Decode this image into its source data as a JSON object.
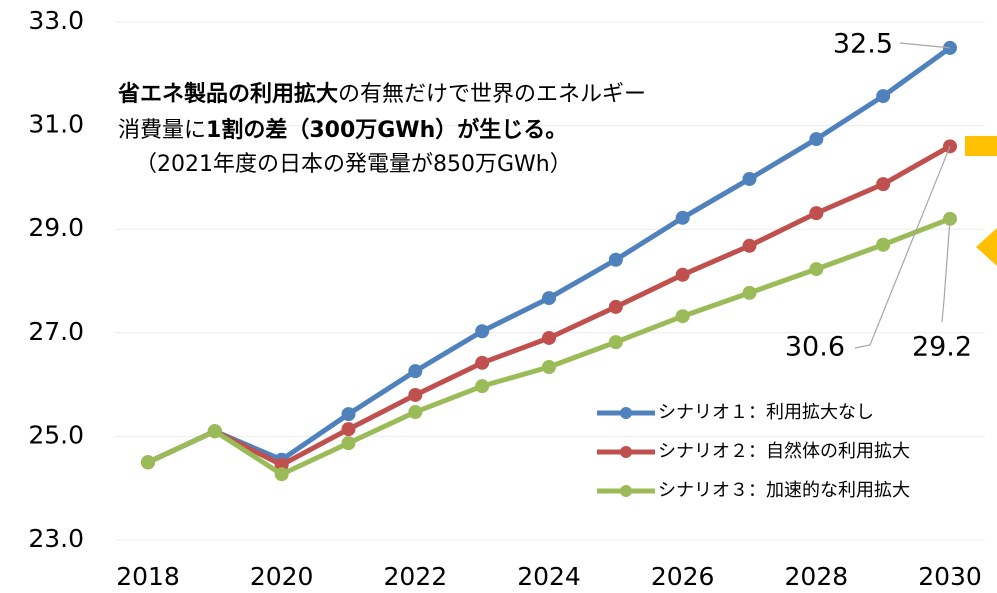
{
  "chart_data": {
    "type": "line",
    "x": [
      2018,
      2019,
      2020,
      2021,
      2022,
      2023,
      2024,
      2025,
      2026,
      2027,
      2028,
      2029,
      2030
    ],
    "xlim": [
      2018,
      2030
    ],
    "xticks": [
      2018,
      2020,
      2022,
      2024,
      2026,
      2028,
      2030
    ],
    "ylim": [
      23,
      33
    ],
    "yticks": [
      {
        "value": 23,
        "label": "23.0"
      },
      {
        "value": 25,
        "label": "25.0"
      },
      {
        "value": 27,
        "label": "27.0"
      },
      {
        "value": 29,
        "label": "29.0"
      },
      {
        "value": 31,
        "label": "31.0"
      },
      {
        "value": 33,
        "label": "33.0"
      }
    ],
    "grid": true,
    "legend": "lower right",
    "series": [
      {
        "name": "シナリオ１：利用拡大なし",
        "color": "#4f81bd",
        "values": [
          24.5,
          25.1,
          24.55,
          25.43,
          26.26,
          27.03,
          27.67,
          28.41,
          29.22,
          29.97,
          30.74,
          31.57,
          32.5
        ]
      },
      {
        "name": "シナリオ２：自然体の利用拡大",
        "color": "#c0504d",
        "values": [
          24.5,
          25.1,
          24.45,
          25.14,
          25.8,
          26.42,
          26.9,
          27.5,
          28.12,
          28.68,
          29.31,
          29.87,
          30.6
        ]
      },
      {
        "name": "シナリオ３：加速的な利用拡大",
        "color": "#9bbb59",
        "values": [
          24.5,
          25.1,
          24.27,
          24.87,
          25.47,
          25.97,
          26.34,
          26.82,
          27.32,
          27.77,
          28.23,
          28.7,
          29.2
        ]
      }
    ],
    "annotation": {
      "lines": [
        [
          {
            "text": "省エネ製品の利用拡大",
            "bold": true
          },
          {
            "text": "の有無だけで世界のエネルギー",
            "bold": false
          }
        ],
        [
          {
            "text": "消費量に",
            "bold": false
          },
          {
            "text": "1割の差（300万GWh）が生じる。",
            "bold": true
          }
        ],
        [
          {
            "text": "（2021年度の日本の発電量が850万GWh）",
            "bold": false
          }
        ]
      ]
    }
  }
}
